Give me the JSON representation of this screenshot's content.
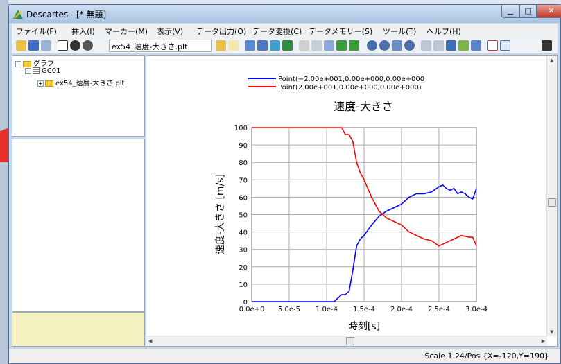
{
  "window": {
    "title": "Descartes - [* 無題]"
  },
  "menu": [
    "ファイル(F)",
    "挿入(I)",
    "マーカー(M)",
    "表示(V)",
    "データ出力(O)",
    "データ変換(C)",
    "データメモリー(S)",
    "ツール(T)",
    "ヘルプ(H)"
  ],
  "toolbar": {
    "file_combo": "ex54_速度-大きさ.plt"
  },
  "tree": {
    "root": "グラフ",
    "group": "GC01",
    "file": "ex54_速度-大きさ.plt"
  },
  "status": {
    "text": "Scale 1.24/Pos {X=-120,Y=190}"
  },
  "chart_data": {
    "type": "line",
    "title": "速度-大きさ",
    "xlabel": "時刻[s]",
    "ylabel": "速度-大きさ [m/s]",
    "xlim": [
      0,
      0.0003
    ],
    "ylim": [
      0,
      100
    ],
    "x_ticks": [
      "0.0e+0",
      "5.0e-5",
      "1.0e-4",
      "1.5e-4",
      "2.0e-4",
      "2.5e-4",
      "3.0e-4"
    ],
    "y_ticks": [
      "0",
      "10",
      "20",
      "30",
      "40",
      "50",
      "60",
      "70",
      "80",
      "90",
      "100"
    ],
    "grid": true,
    "legend_position": "top",
    "series": [
      {
        "name": "Point(−2.00e+001,0.00e+000,0.00e+000",
        "color": "#0000ff",
        "x": [
          0,
          0.0001,
          0.00011,
          0.000115,
          0.00012,
          0.000125,
          0.00013,
          0.000135,
          0.00014,
          0.000145,
          0.00015,
          0.00016,
          0.00017,
          0.00018,
          0.00019,
          0.0002,
          0.00021,
          0.00022,
          0.00023,
          0.00024,
          0.00025,
          0.000255,
          0.00026,
          0.000265,
          0.00027,
          0.000275,
          0.00028,
          0.000285,
          0.00029,
          0.000295,
          0.0003
        ],
        "y": [
          0,
          0,
          0,
          2,
          4,
          4,
          6,
          18,
          32,
          36,
          38,
          44,
          49,
          52,
          54,
          56,
          60,
          62,
          62,
          63,
          66,
          67,
          65,
          64,
          65,
          62,
          63,
          62,
          60,
          59,
          65
        ]
      },
      {
        "name": "Point(2.00e+001,0.00e+000,0.00e+000)",
        "color": "#ff0000",
        "x": [
          0,
          0.0001,
          0.00012,
          0.000125,
          0.00013,
          0.000135,
          0.00014,
          0.000145,
          0.00015,
          0.00016,
          0.00017,
          0.00018,
          0.00019,
          0.0002,
          0.00021,
          0.00022,
          0.00023,
          0.00024,
          0.00025,
          0.00026,
          0.00027,
          0.00028,
          0.00029,
          0.000295,
          0.0003
        ],
        "y": [
          100,
          100,
          100,
          96,
          96,
          92,
          80,
          74,
          70,
          60,
          52,
          48,
          46,
          44,
          40,
          38,
          36,
          35,
          32,
          34,
          36,
          38,
          37,
          37,
          32
        ]
      }
    ]
  }
}
